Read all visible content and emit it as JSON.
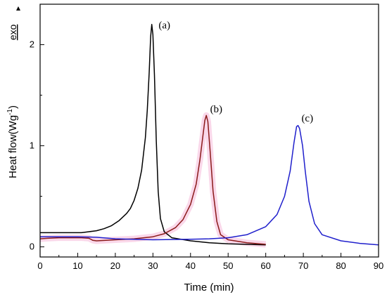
{
  "chart_data": {
    "type": "line",
    "xlabel": "Time (min)",
    "ylabel": "Heat flow(Wg",
    "ylabel_sup": "-1",
    "exo_label": "exo",
    "xlim": [
      0,
      90
    ],
    "ylim": [
      -0.1,
      2.4
    ],
    "x_ticks": [
      0,
      10,
      20,
      30,
      40,
      50,
      60,
      70,
      80,
      90
    ],
    "y_ticks": [
      0,
      1,
      2
    ],
    "grid": false,
    "annotations": [
      {
        "text": "(a)",
        "x": 31.5,
        "y": 2.16
      },
      {
        "text": "(b)",
        "x": 45.2,
        "y": 1.33
      },
      {
        "text": "(c)",
        "x": 69.5,
        "y": 1.24
      }
    ],
    "series": [
      {
        "color": "#000000",
        "points": [
          [
            0,
            0.14
          ],
          [
            1,
            0.14
          ],
          [
            5,
            0.14
          ],
          [
            10,
            0.14
          ],
          [
            11,
            0.14
          ],
          [
            13,
            0.15
          ],
          [
            15,
            0.16
          ],
          [
            17,
            0.18
          ],
          [
            19,
            0.21
          ],
          [
            21,
            0.26
          ],
          [
            23,
            0.33
          ],
          [
            24,
            0.38
          ],
          [
            25,
            0.46
          ],
          [
            26,
            0.58
          ],
          [
            27,
            0.76
          ],
          [
            28,
            1.08
          ],
          [
            28.5,
            1.35
          ],
          [
            29,
            1.72
          ],
          [
            29.4,
            2.08
          ],
          [
            29.7,
            2.2
          ],
          [
            30,
            2.1
          ],
          [
            30.4,
            1.7
          ],
          [
            30.9,
            1.05
          ],
          [
            31.4,
            0.55
          ],
          [
            32,
            0.28
          ],
          [
            33,
            0.15
          ],
          [
            35,
            0.09
          ],
          [
            40,
            0.06
          ],
          [
            45,
            0.04
          ],
          [
            50,
            0.03
          ],
          [
            55,
            0.025
          ],
          [
            60,
            0.02
          ]
        ]
      },
      {
        "color": "#8b1a1a",
        "shade": "#f5b8d8",
        "points": [
          [
            0,
            0.08
          ],
          [
            2,
            0.085
          ],
          [
            5,
            0.09
          ],
          [
            8,
            0.09
          ],
          [
            11,
            0.09
          ],
          [
            13,
            0.085
          ],
          [
            14,
            0.065
          ],
          [
            15,
            0.06
          ],
          [
            20,
            0.07
          ],
          [
            25,
            0.08
          ],
          [
            30,
            0.1
          ],
          [
            33,
            0.13
          ],
          [
            36,
            0.19
          ],
          [
            38,
            0.27
          ],
          [
            40,
            0.42
          ],
          [
            41.5,
            0.62
          ],
          [
            42.5,
            0.86
          ],
          [
            43.3,
            1.1
          ],
          [
            43.8,
            1.25
          ],
          [
            44.2,
            1.3
          ],
          [
            44.6,
            1.24
          ],
          [
            45.2,
            0.95
          ],
          [
            46,
            0.55
          ],
          [
            47,
            0.25
          ],
          [
            48,
            0.12
          ],
          [
            50,
            0.07
          ],
          [
            55,
            0.04
          ],
          [
            60,
            0.025
          ]
        ]
      },
      {
        "color": "#1f1fcc",
        "points": [
          [
            0,
            0.1
          ],
          [
            5,
            0.1
          ],
          [
            10,
            0.1
          ],
          [
            15,
            0.095
          ],
          [
            20,
            0.08
          ],
          [
            30,
            0.07
          ],
          [
            40,
            0.075
          ],
          [
            45,
            0.08
          ],
          [
            50,
            0.09
          ],
          [
            55,
            0.12
          ],
          [
            60,
            0.2
          ],
          [
            63,
            0.32
          ],
          [
            65,
            0.5
          ],
          [
            66.5,
            0.75
          ],
          [
            67.5,
            1.03
          ],
          [
            68.2,
            1.19
          ],
          [
            68.6,
            1.2
          ],
          [
            69,
            1.17
          ],
          [
            69.8,
            1.0
          ],
          [
            70.5,
            0.75
          ],
          [
            71.5,
            0.45
          ],
          [
            73,
            0.23
          ],
          [
            75,
            0.12
          ],
          [
            80,
            0.06
          ],
          [
            85,
            0.035
          ],
          [
            90,
            0.02
          ]
        ]
      }
    ]
  }
}
